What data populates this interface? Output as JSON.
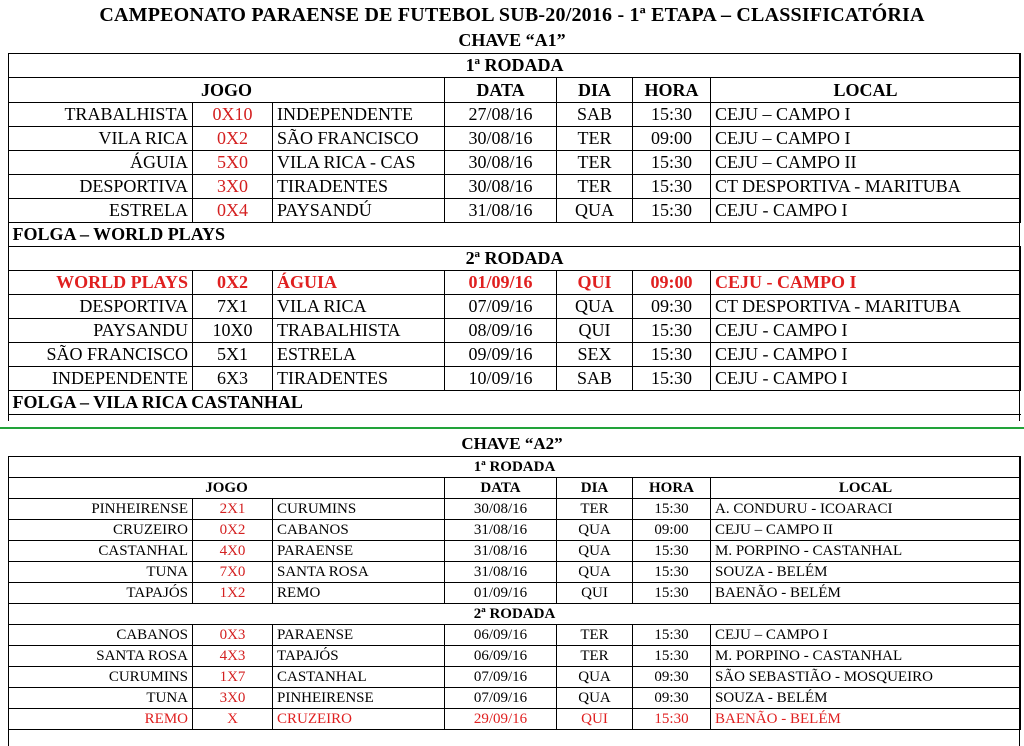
{
  "title": "CAMPEONATO PARAENSE DE FUTEBOL SUB-20/2016 - 1ª ETAPA – CLASSIFICATÓRIA",
  "chave1": {
    "label": "CHAVE “A1”",
    "headers": {
      "jogo": "JOGO",
      "data": "DATA",
      "dia": "DIA",
      "hora": "HORA",
      "local": "LOCAL"
    },
    "rodada1": {
      "label": "1ª RODADA",
      "games": [
        {
          "home": "TRABALHISTA",
          "score": "0X10",
          "away": "INDEPENDENTE",
          "date": "27/08/16",
          "day": "SAB",
          "time": "15:30",
          "local": "CEJU – CAMPO I"
        },
        {
          "home": "VILA RICA",
          "score": "0X2",
          "away": "SÃO FRANCISCO",
          "date": "30/08/16",
          "day": "TER",
          "time": "09:00",
          "local": "CEJU – CAMPO I"
        },
        {
          "home": "ÁGUIA",
          "score": "5X0",
          "away": "VILA RICA - CAS",
          "date": "30/08/16",
          "day": "TER",
          "time": "15:30",
          "local": "CEJU – CAMPO II"
        },
        {
          "home": "DESPORTIVA",
          "score": "3X0",
          "away": "TIRADENTES",
          "date": "30/08/16",
          "day": "TER",
          "time": "15:30",
          "local": "CT DESPORTIVA - MARITUBA"
        },
        {
          "home": "ESTRELA",
          "score": "0X4",
          "away": "PAYSANDÚ",
          "date": "31/08/16",
          "day": "QUA",
          "time": "15:30",
          "local": "CEJU - CAMPO I"
        }
      ],
      "folga": "FOLGA – WORLD PLAYS"
    },
    "rodada2": {
      "label": "2ª RODADA",
      "games": [
        {
          "home": "WORLD PLAYS",
          "score": "0X2",
          "away": "ÁGUIA",
          "date": "01/09/16",
          "day": "QUI",
          "time": "09:00",
          "local": "CEJU - CAMPO I"
        },
        {
          "home": "DESPORTIVA",
          "score": "7X1",
          "away": "VILA RICA",
          "date": "07/09/16",
          "day": "QUA",
          "time": "09:30",
          "local": "CT DESPORTIVA - MARITUBA"
        },
        {
          "home": "PAYSANDU",
          "score": "10X0",
          "away": "TRABALHISTA",
          "date": "08/09/16",
          "day": "QUI",
          "time": "15:30",
          "local": "CEJU - CAMPO I"
        },
        {
          "home": "SÃO FRANCISCO",
          "score": "5X1",
          "away": "ESTRELA",
          "date": "09/09/16",
          "day": "SEX",
          "time": "15:30",
          "local": "CEJU - CAMPO I"
        },
        {
          "home": "INDEPENDENTE",
          "score": "6X3",
          "away": "TIRADENTES",
          "date": "10/09/16",
          "day": "SAB",
          "time": "15:30",
          "local": "CEJU - CAMPO I"
        }
      ],
      "folga": "FOLGA – VILA RICA CASTANHAL"
    }
  },
  "chave2": {
    "label": "CHAVE “A2”",
    "headers": {
      "jogo": "JOGO",
      "data": "DATA",
      "dia": "DIA",
      "hora": "HORA",
      "local": "LOCAL"
    },
    "rodada1": {
      "label": "1ª RODADA",
      "games": [
        {
          "home": "PINHEIRENSE",
          "score": "2X1",
          "away": "CURUMINS",
          "date": "30/08/16",
          "day": "TER",
          "time": "15:30",
          "local": "A. CONDURU - ICOARACI"
        },
        {
          "home": "CRUZEIRO",
          "score": "0X2",
          "away": "CABANOS",
          "date": "31/08/16",
          "day": "QUA",
          "time": "09:00",
          "local": "CEJU – CAMPO II"
        },
        {
          "home": "CASTANHAL",
          "score": "4X0",
          "away": "PARAENSE",
          "date": "31/08/16",
          "day": "QUA",
          "time": "15:30",
          "local": "M. PORPINO - CASTANHAL"
        },
        {
          "home": "TUNA",
          "score": "7X0",
          "away": "SANTA ROSA",
          "date": "31/08/16",
          "day": "QUA",
          "time": "15:30",
          "local": "SOUZA - BELÉM"
        },
        {
          "home": "TAPAJÓS",
          "score": "1X2",
          "away": "REMO",
          "date": "01/09/16",
          "day": "QUI",
          "time": "15:30",
          "local": "BAENÃO - BELÉM"
        }
      ]
    },
    "rodada2": {
      "label": "2ª RODADA",
      "games": [
        {
          "home": "CABANOS",
          "score": "0X3",
          "away": "PARAENSE",
          "date": "06/09/16",
          "day": "TER",
          "time": "15:30",
          "local": "CEJU – CAMPO I"
        },
        {
          "home": "SANTA ROSA",
          "score": "4X3",
          "away": "TAPAJÓS",
          "date": "06/09/16",
          "day": "TER",
          "time": "15:30",
          "local": "M. PORPINO - CASTANHAL"
        },
        {
          "home": "CURUMINS",
          "score": "1X7",
          "away": "CASTANHAL",
          "date": "07/09/16",
          "day": "QUA",
          "time": "09:30",
          "local": "SÃO SEBASTIÃO - MOSQUEIRO"
        },
        {
          "home": "TUNA",
          "score": "3X0",
          "away": "PINHEIRENSE",
          "date": "07/09/16",
          "day": "QUA",
          "time": "09:30",
          "local": "SOUZA - BELÉM"
        },
        {
          "home": "REMO",
          "score": "X",
          "away": "CRUZEIRO",
          "date": "29/09/16",
          "day": "QUI",
          "time": "15:30",
          "local": "BAENÃO - BELÉM"
        }
      ]
    }
  },
  "colors": {
    "score_red": "#d42020",
    "highlight_red": "#e02020",
    "divider_green": "#22a33a"
  }
}
